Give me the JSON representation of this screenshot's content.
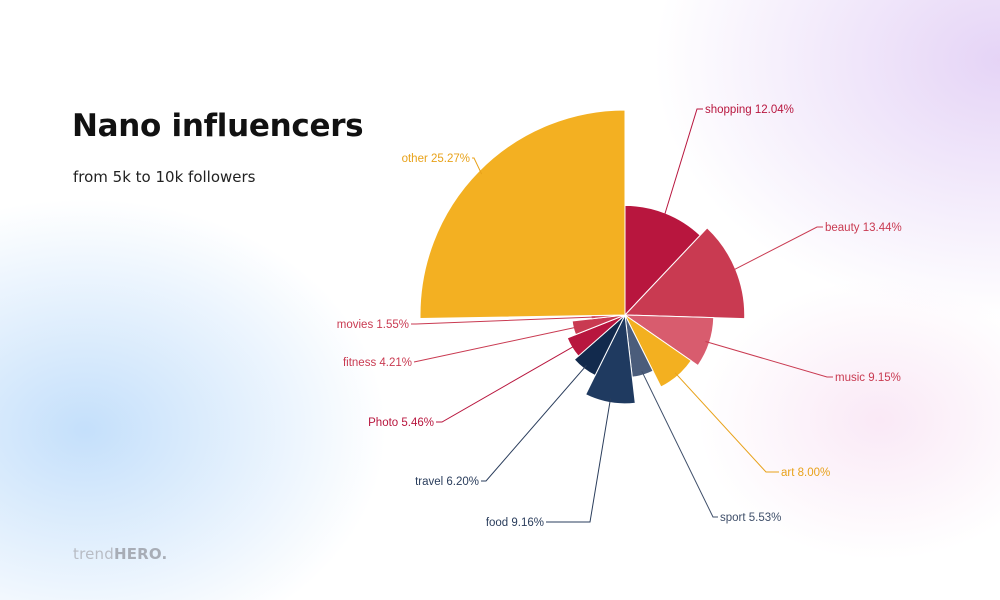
{
  "title": "Nano influencers",
  "subtitle": "from 5k to 10k followers",
  "brand": {
    "prefix": "trend",
    "strong": "HERO."
  },
  "chart_data": {
    "type": "pie",
    "variant": "nightingale-rose",
    "categories": [
      "shopping",
      "beauty",
      "music",
      "art",
      "sport",
      "food",
      "travel",
      "Photo",
      "fitness",
      "movies",
      "other"
    ],
    "values": [
      12.04,
      13.44,
      9.15,
      8.0,
      5.53,
      9.16,
      6.2,
      5.46,
      4.21,
      1.55,
      25.27
    ],
    "labels": [
      "shopping 12.04%",
      "beauty 13.44%",
      "music 9.15%",
      "art 8.00%",
      "sport 5.53%",
      "food 9.16%",
      "travel 6.20%",
      "Photo 5.46%",
      "fitness 4.21%",
      "movies 1.55%",
      "other 25.27%"
    ],
    "colors": [
      "#b8163e",
      "#c93a51",
      "#d85c6e",
      "#f3b020",
      "#4b5d7b",
      "#1f3a60",
      "#122a4d",
      "#b8163e",
      "#c93a51",
      "#d85c6e",
      "#f3b022"
    ],
    "label_colors": [
      "#b8163e",
      "#c93a51",
      "#c93a51",
      "#e8a21a",
      "#3f4f6a",
      "#2a3d5c",
      "#2a3d5c",
      "#b8163e",
      "#c93a51",
      "#c93a51",
      "#e8a21a"
    ],
    "legend": "none"
  }
}
